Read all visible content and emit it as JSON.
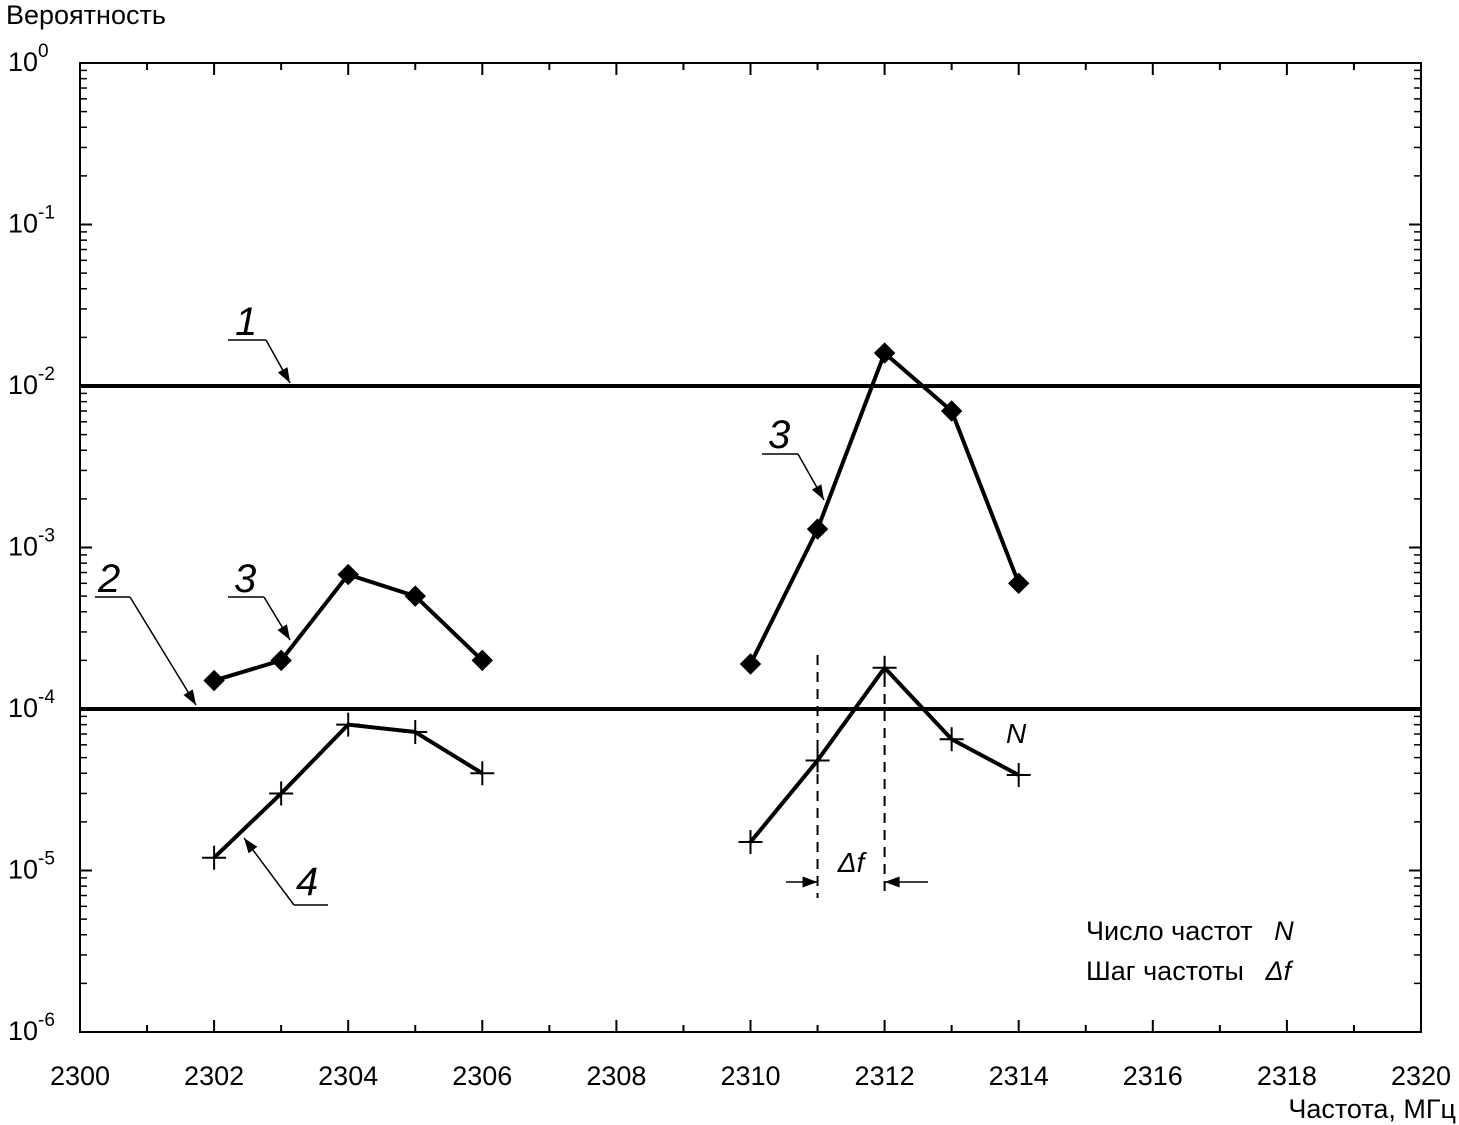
{
  "chart_data": {
    "type": "line",
    "ylabel": "Вероятность",
    "xlabel": "Частота, МГц",
    "xlim": [
      2300,
      2320
    ],
    "ylim": [
      1e-06,
      1
    ],
    "y_scale": "log",
    "grid": false,
    "x_ticks": [
      "2300",
      "2302",
      "2304",
      "2306",
      "2308",
      "2310",
      "2312",
      "2314",
      "2316",
      "2318",
      "2320"
    ],
    "y_ticks": [
      {
        "base": "10",
        "exp": "0",
        "value": 1
      },
      {
        "base": "10",
        "exp": "-1",
        "value": 0.1
      },
      {
        "base": "10",
        "exp": "-2",
        "value": 0.01
      },
      {
        "base": "10",
        "exp": "-3",
        "value": 0.001
      },
      {
        "base": "10",
        "exp": "-4",
        "value": 0.0001
      },
      {
        "base": "10",
        "exp": "-5",
        "value": 1e-05
      },
      {
        "base": "10",
        "exp": "-6",
        "value": 1e-06
      }
    ],
    "hlines": [
      {
        "label": "1",
        "y": 0.01
      },
      {
        "label": "2",
        "y": 0.0001
      }
    ],
    "series": [
      {
        "label": "3",
        "marker": "diamond",
        "x": [
          2302,
          2303,
          2304,
          2305,
          2306
        ],
        "y": [
          0.00015,
          0.0002,
          0.00068,
          0.0005,
          0.0002
        ]
      },
      {
        "label": "3",
        "marker": "diamond",
        "x": [
          2310,
          2311,
          2312,
          2313,
          2314
        ],
        "y": [
          0.00019,
          0.0013,
          0.016,
          0.007,
          0.0006
        ]
      },
      {
        "label": "4",
        "marker": "plus",
        "x": [
          2302,
          2303,
          2304,
          2305,
          2306
        ],
        "y": [
          1.2e-05,
          3e-05,
          8e-05,
          7.2e-05,
          4e-05
        ]
      },
      {
        "label": "N",
        "marker": "plus",
        "x": [
          2310,
          2311,
          2312,
          2313,
          2314
        ],
        "y": [
          1.5e-05,
          4.8e-05,
          0.00018,
          6.5e-05,
          3.9e-05
        ]
      }
    ],
    "annotations": {
      "delta_f": "Δf",
      "legend_lines": [
        {
          "text": "Число частот",
          "symbol": "N"
        },
        {
          "text": "Шаг частоты",
          "symbol": "Δf"
        }
      ]
    }
  }
}
